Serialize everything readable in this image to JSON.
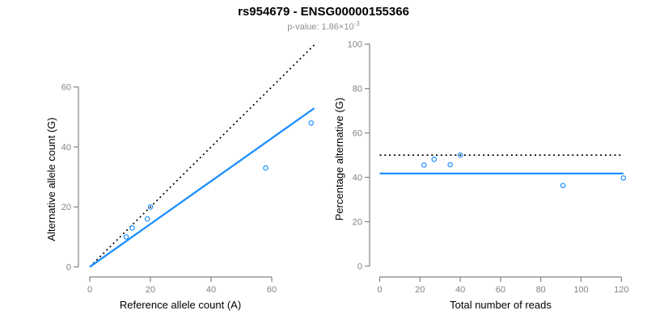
{
  "header": {
    "title": "rs954679 - ENSG00000155366",
    "subtitle_prefix": "p-value: 1.86×10",
    "subtitle_exponent": "-3"
  },
  "colors": {
    "accent_blue": "#1E90FF",
    "dotted_black": "#000000",
    "axis_gray": "#838383",
    "tick_label_gray": "#838383",
    "title_black": "#000000",
    "subtitle_gray": "#8f8f8f",
    "background": "#ffffff"
  },
  "chart_data": [
    {
      "type": "scatter",
      "name": "allele-counts",
      "xlabel": "Reference allele count (A)",
      "ylabel": "Alternative allele count (G)",
      "xlim": [
        0,
        74
      ],
      "ylim": [
        0,
        75
      ],
      "xticks": [
        0,
        20,
        40,
        60
      ],
      "yticks": [
        0,
        20,
        40,
        60
      ],
      "grid": false,
      "marker": "open-circle",
      "points": [
        [
          12,
          10
        ],
        [
          14,
          13
        ],
        [
          19,
          16
        ],
        [
          20,
          20
        ],
        [
          58,
          33
        ],
        [
          73,
          48
        ]
      ],
      "lines": [
        {
          "name": "identity-line",
          "style": "dotted",
          "color": "#000000",
          "from": [
            0,
            0
          ],
          "to": [
            74,
            74
          ]
        },
        {
          "name": "fit-line",
          "style": "solid",
          "color": "#1E90FF",
          "from": [
            0,
            0
          ],
          "to": [
            74,
            52.9
          ]
        }
      ]
    },
    {
      "type": "scatter",
      "name": "percentage-vs-coverage",
      "xlabel": "Total number of reads",
      "ylabel": "Percentage alternative (G)",
      "xlim": [
        0,
        121
      ],
      "ylim": [
        0,
        100
      ],
      "xticks": [
        0,
        20,
        40,
        60,
        80,
        100,
        120
      ],
      "yticks": [
        0,
        20,
        40,
        60,
        80,
        100
      ],
      "grid": false,
      "marker": "open-circle",
      "points": [
        [
          22,
          45.5
        ],
        [
          27,
          48.1
        ],
        [
          35,
          45.7
        ],
        [
          40,
          50.0
        ],
        [
          91,
          36.3
        ],
        [
          121,
          39.7
        ]
      ],
      "lines": [
        {
          "name": "expected-50pct-line",
          "style": "dotted",
          "color": "#000000",
          "y": 50
        },
        {
          "name": "mean-percentage-line",
          "style": "solid",
          "color": "#1E90FF",
          "y": 41.7
        }
      ]
    }
  ]
}
